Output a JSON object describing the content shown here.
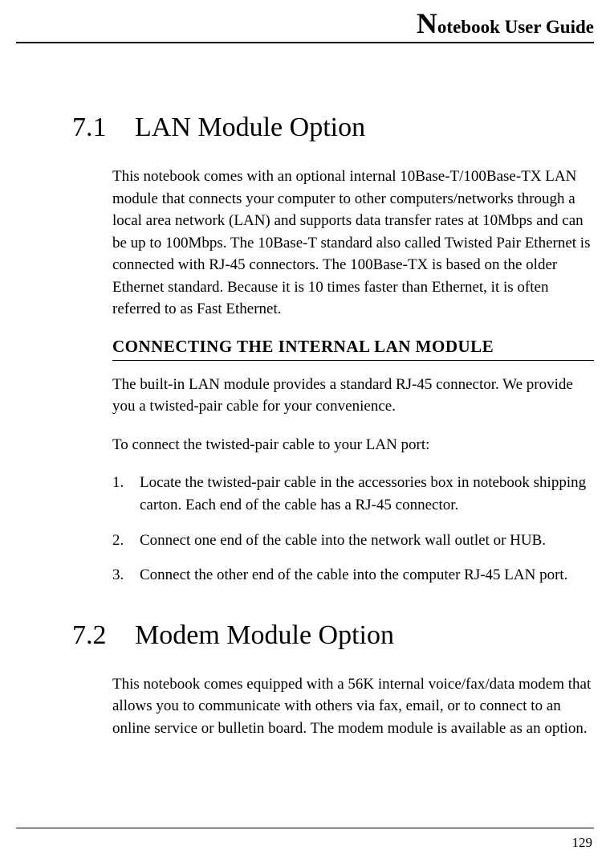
{
  "header": {
    "title_prefix": "N",
    "title_rest": "otebook User Guide"
  },
  "sections": [
    {
      "num": "7.1",
      "title": "LAN Module Option",
      "intro": "This notebook comes with an optional internal 10Base-T/100Base-TX LAN module that connects your computer to other computers/networks through a local area network (LAN) and supports data transfer rates at 10Mbps and can be up to 100Mbps. The 10Base-T standard also called Twisted Pair Ethernet is connected with RJ-45 connectors. The 100Base-TX is based on the older Ethernet standard. Because it is 10 times faster than Ethernet, it is often referred to as Fast Ethernet.",
      "sub_heading": "CONNECTING THE INTERNAL LAN MODULE",
      "sub_intro": "The built-in LAN module provides a standard RJ-45 connector. We provide you a twisted-pair cable for your convenience.",
      "list_intro": "To connect the twisted-pair cable to your LAN port:",
      "steps": [
        {
          "num": "1.",
          "text": "Locate the twisted-pair cable in the accessories box in notebook shipping carton. Each end of the cable has a RJ-45 connector."
        },
        {
          "num": "2.",
          "text": "Connect one end of the cable into the network wall outlet or HUB."
        },
        {
          "num": "3.",
          "text": "Connect the other end of the cable into the computer RJ-45 LAN port."
        }
      ]
    },
    {
      "num": "7.2",
      "title": "Modem Module Option",
      "intro": "This notebook comes equipped with a 56K internal voice/fax/data modem that allows you to communicate with others via fax, email, or to connect to an online service or bulletin board. The modem module is available as an option."
    }
  ],
  "page_number": "129"
}
